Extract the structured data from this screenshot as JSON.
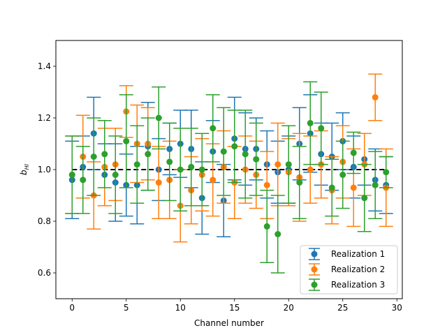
{
  "chart_data": {
    "type": "scatter",
    "title": "",
    "xlabel": "Channel number",
    "ylabel": "b_HI",
    "ylabel_main": "b",
    "ylabel_sub": "HI",
    "xlim": [
      -1.5,
      30.5
    ],
    "ylim": [
      0.5,
      1.5
    ],
    "xticks": [
      0,
      5,
      10,
      15,
      20,
      25,
      30
    ],
    "yticks": [
      0.6,
      0.8,
      1.0,
      1.2,
      1.4
    ],
    "xtick_labels": [
      "0",
      "5",
      "10",
      "15",
      "20",
      "25",
      "30"
    ],
    "ytick_labels": [
      "0.6",
      "0.8",
      "1.0",
      "1.2",
      "1.4"
    ],
    "reference_line": {
      "y": 1.0,
      "xmin": 0,
      "xmax": 29,
      "style": "dashed",
      "color": "#000000"
    },
    "legend_position": "lower-right",
    "x": [
      0,
      1,
      2,
      3,
      4,
      5,
      6,
      7,
      8,
      9,
      10,
      11,
      12,
      13,
      14,
      15,
      16,
      17,
      18,
      19,
      20,
      21,
      22,
      23,
      24,
      25,
      26,
      27,
      28,
      29
    ],
    "series": [
      {
        "name": "Realization 1",
        "color": "#1f77b4",
        "values": [
          0.96,
          1.01,
          1.14,
          0.98,
          0.95,
          0.94,
          0.94,
          1.09,
          1.0,
          1.08,
          1.1,
          1.08,
          0.89,
          1.07,
          0.88,
          1.12,
          1.08,
          1.08,
          1.02,
          0.99,
          1.0,
          1.1,
          1.14,
          1.06,
          1.05,
          1.11,
          1.01,
          1.04,
          0.96,
          0.94
        ],
        "errors": [
          0.15,
          0.12,
          0.14,
          0.12,
          0.15,
          0.12,
          0.15,
          0.17,
          0.12,
          0.1,
          0.13,
          0.15,
          0.14,
          0.12,
          0.14,
          0.16,
          0.14,
          0.12,
          0.13,
          0.12,
          0.13,
          0.14,
          0.15,
          0.12,
          0.13,
          0.11,
          0.12,
          0.1,
          0.12,
          0.11
        ]
      },
      {
        "name": "Realization 2",
        "color": "#ff7f0e",
        "values": [
          0.98,
          1.05,
          0.9,
          1.01,
          1.02,
          1.225,
          1.1,
          1.1,
          0.95,
          0.96,
          0.86,
          0.92,
          0.98,
          0.96,
          1.01,
          0.95,
          1.0,
          0.98,
          0.94,
          1.02,
          0.99,
          0.97,
          1.0,
          1.02,
          0.92,
          1.03,
          0.93,
          1.02,
          1.28,
          0.93
        ],
        "errors": [
          0.15,
          0.16,
          0.13,
          0.15,
          0.14,
          0.1,
          0.15,
          0.14,
          0.14,
          0.15,
          0.14,
          0.13,
          0.14,
          0.14,
          0.14,
          0.14,
          0.13,
          0.13,
          0.13,
          0.16,
          0.13,
          0.17,
          0.13,
          0.13,
          0.13,
          0.14,
          0.15,
          0.12,
          0.09,
          0.15
        ]
      },
      {
        "name": "Realization 3",
        "color": "#2ca02c",
        "values": [
          0.98,
          0.96,
          1.05,
          1.06,
          0.98,
          1.11,
          1.02,
          1.06,
          1.2,
          1.03,
          1.0,
          1.01,
          1.0,
          1.16,
          1.07,
          1.09,
          1.06,
          1.04,
          0.78,
          0.75,
          1.02,
          0.95,
          1.18,
          1.16,
          0.93,
          0.98,
          1.065,
          0.89,
          0.94,
          0.99
        ],
        "errors": [
          0.15,
          0.13,
          0.15,
          0.13,
          0.15,
          0.18,
          0.15,
          0.14,
          0.12,
          0.15,
          0.16,
          0.15,
          0.14,
          0.13,
          0.17,
          0.14,
          0.17,
          0.14,
          0.14,
          0.15,
          0.15,
          0.14,
          0.16,
          0.14,
          0.11,
          0.13,
          0.08,
          0.13,
          0.13,
          0.06
        ]
      }
    ]
  }
}
